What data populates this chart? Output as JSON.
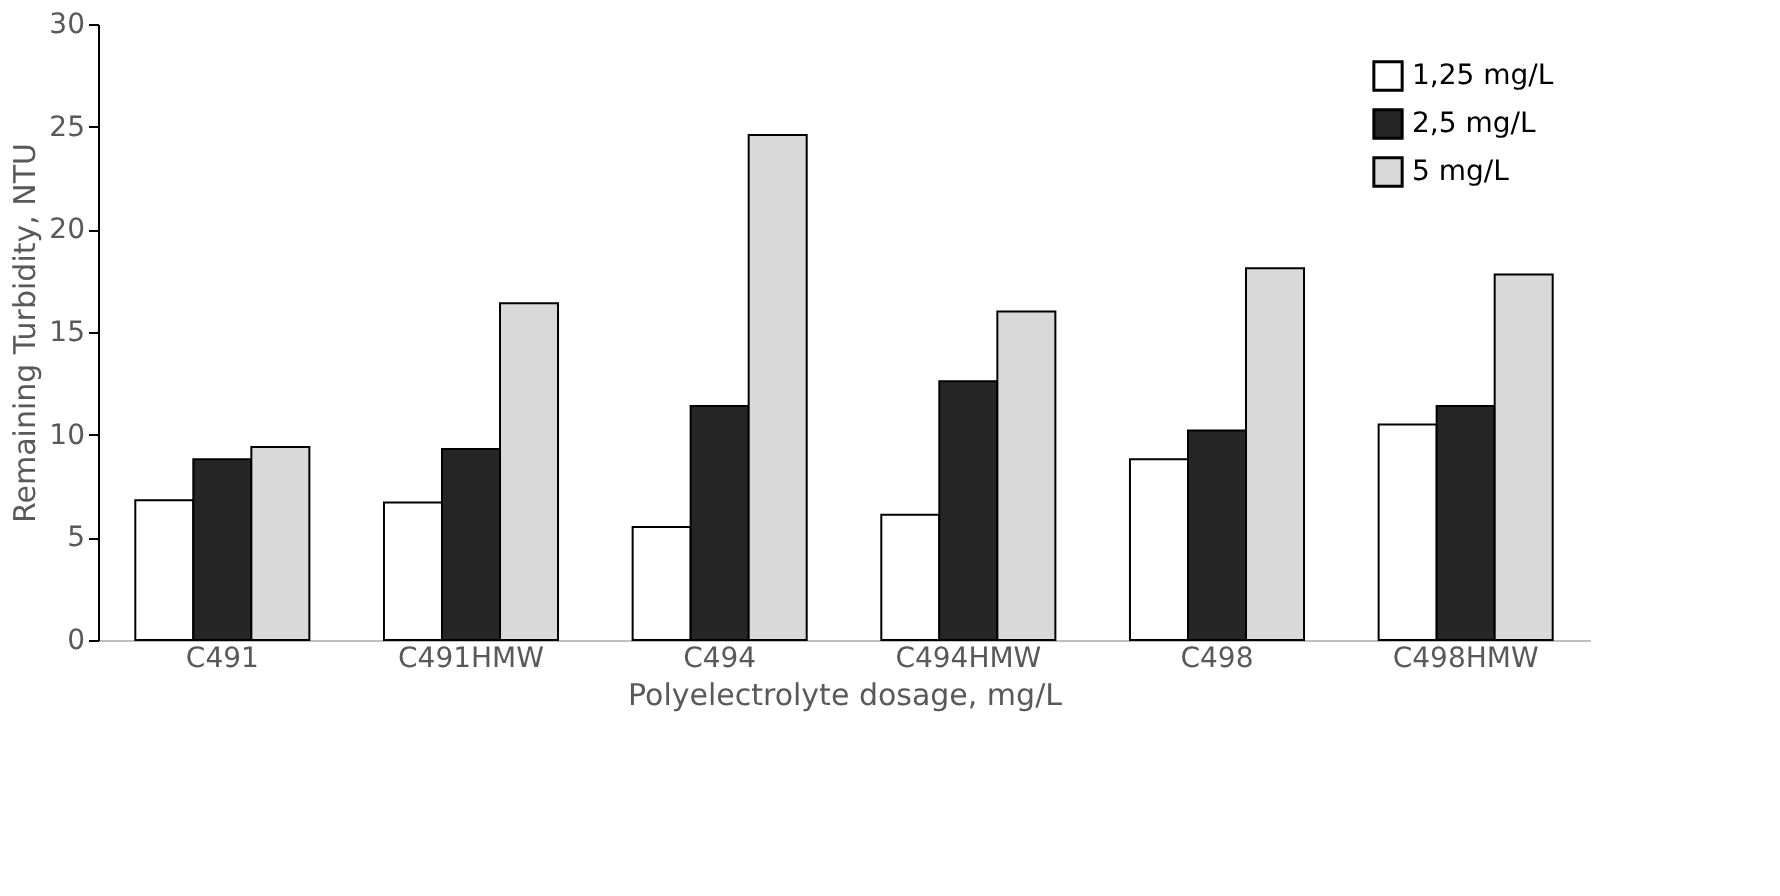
{
  "chart_data": {
    "type": "bar",
    "xlabel": "Polyelectrolyte dosage, mg/L",
    "ylabel": "Remaining Turbidity, NTU",
    "categories": [
      "C491",
      "C491HMW",
      "C494",
      "C494HMW",
      "C498",
      "C498HMW"
    ],
    "series": [
      {
        "name": "1,25 mg/L",
        "color": "#ffffff",
        "values": [
          6.8,
          6.7,
          5.5,
          6.1,
          8.8,
          10.5
        ]
      },
      {
        "name": "2,5 mg/L",
        "color": "#262626",
        "values": [
          8.8,
          9.3,
          11.4,
          12.6,
          10.2,
          11.4
        ]
      },
      {
        "name": "5 mg/L",
        "color": "#d9d9d9",
        "values": [
          9.4,
          16.4,
          24.6,
          16.0,
          18.1,
          17.8
        ]
      }
    ],
    "ylim": [
      0,
      30
    ],
    "yticks": [
      0,
      5,
      10,
      15,
      20,
      25,
      30
    ],
    "grid": false,
    "legend": "top right"
  }
}
